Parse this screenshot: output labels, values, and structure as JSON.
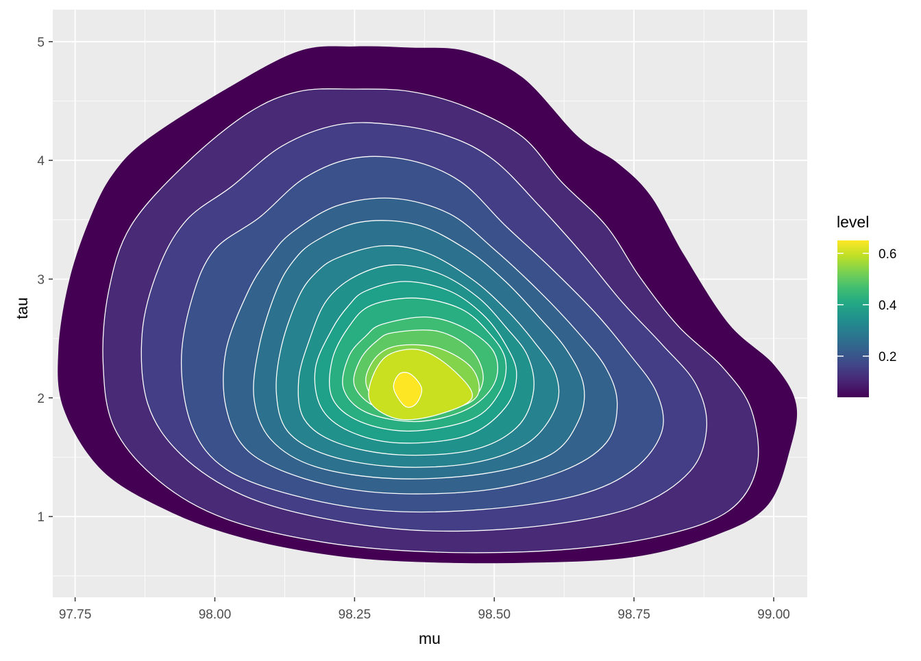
{
  "chart_data": {
    "type": "filled-density-contour",
    "title": "",
    "xlabel": "mu",
    "ylabel": "tau",
    "xlim": [
      97.71,
      99.06
    ],
    "ylim": [
      0.32,
      5.27
    ],
    "x_ticks": [
      97.75,
      98.0,
      98.25,
      98.5,
      98.75,
      99.0
    ],
    "x_tick_labels": [
      "97.75",
      "98.00",
      "98.25",
      "98.50",
      "98.75",
      "99.00"
    ],
    "y_ticks": [
      1,
      2,
      3,
      4,
      5
    ],
    "y_tick_labels": [
      "1",
      "2",
      "3",
      "4",
      "5"
    ],
    "grid": true,
    "panel_background": "#ebebeb",
    "grid_color": "#ffffff",
    "contour_line_color": "#ffffff",
    "peak": {
      "x": 98.335,
      "y": 2.09
    },
    "levels": [
      {
        "level": 0.04,
        "color": "#440154",
        "points": [
          [
            97.88,
            4.18
          ],
          [
            98.02,
            4.6
          ],
          [
            98.15,
            4.92
          ],
          [
            98.25,
            4.96
          ],
          [
            98.35,
            4.95
          ],
          [
            98.45,
            4.92
          ],
          [
            98.55,
            4.7
          ],
          [
            98.65,
            4.2
          ],
          [
            98.72,
            3.98
          ],
          [
            98.78,
            3.7
          ],
          [
            98.84,
            3.2
          ],
          [
            98.92,
            2.62
          ],
          [
            99.0,
            2.28
          ],
          [
            99.04,
            1.95
          ],
          [
            99.03,
            1.58
          ],
          [
            98.99,
            1.1
          ],
          [
            98.9,
            0.85
          ],
          [
            98.75,
            0.66
          ],
          [
            98.55,
            0.61
          ],
          [
            98.35,
            0.62
          ],
          [
            98.2,
            0.68
          ],
          [
            98.05,
            0.82
          ],
          [
            97.92,
            1.04
          ],
          [
            97.8,
            1.38
          ],
          [
            97.73,
            1.9
          ],
          [
            97.72,
            2.4
          ],
          [
            97.74,
            3.0
          ],
          [
            97.78,
            3.55
          ],
          [
            97.82,
            3.9
          ]
        ]
      },
      {
        "level": 0.08,
        "color": "#482a77",
        "points": [
          [
            97.95,
            3.98
          ],
          [
            98.06,
            4.4
          ],
          [
            98.15,
            4.58
          ],
          [
            98.25,
            4.6
          ],
          [
            98.35,
            4.58
          ],
          [
            98.45,
            4.45
          ],
          [
            98.55,
            4.2
          ],
          [
            98.62,
            3.82
          ],
          [
            98.7,
            3.45
          ],
          [
            98.76,
            3.02
          ],
          [
            98.83,
            2.6
          ],
          [
            98.91,
            2.25
          ],
          [
            98.96,
            1.9
          ],
          [
            98.97,
            1.42
          ],
          [
            98.92,
            1.05
          ],
          [
            98.8,
            0.84
          ],
          [
            98.62,
            0.72
          ],
          [
            98.4,
            0.7
          ],
          [
            98.2,
            0.78
          ],
          [
            98.02,
            0.98
          ],
          [
            97.9,
            1.3
          ],
          [
            97.82,
            1.75
          ],
          [
            97.8,
            2.3
          ],
          [
            97.81,
            2.9
          ],
          [
            97.85,
            3.45
          ]
        ]
      },
      {
        "level": 0.12,
        "color": "#433e85",
        "points": [
          [
            98.03,
            3.78
          ],
          [
            98.12,
            4.12
          ],
          [
            98.22,
            4.3
          ],
          [
            98.32,
            4.3
          ],
          [
            98.42,
            4.2
          ],
          [
            98.5,
            4.0
          ],
          [
            98.58,
            3.62
          ],
          [
            98.66,
            3.2
          ],
          [
            98.73,
            2.8
          ],
          [
            98.8,
            2.45
          ],
          [
            98.86,
            2.12
          ],
          [
            98.88,
            1.75
          ],
          [
            98.85,
            1.38
          ],
          [
            98.75,
            1.08
          ],
          [
            98.58,
            0.92
          ],
          [
            98.38,
            0.88
          ],
          [
            98.2,
            0.98
          ],
          [
            98.05,
            1.18
          ],
          [
            97.94,
            1.52
          ],
          [
            97.88,
            1.95
          ],
          [
            97.87,
            2.55
          ],
          [
            97.9,
            3.1
          ],
          [
            97.95,
            3.5
          ]
        ]
      },
      {
        "level": 0.16,
        "color": "#3b518b",
        "points": [
          [
            98.08,
            3.52
          ],
          [
            98.16,
            3.85
          ],
          [
            98.25,
            4.02
          ],
          [
            98.35,
            4.0
          ],
          [
            98.44,
            3.82
          ],
          [
            98.52,
            3.45
          ],
          [
            98.6,
            3.1
          ],
          [
            98.68,
            2.72
          ],
          [
            98.74,
            2.38
          ],
          [
            98.79,
            2.05
          ],
          [
            98.8,
            1.72
          ],
          [
            98.75,
            1.4
          ],
          [
            98.65,
            1.18
          ],
          [
            98.48,
            1.06
          ],
          [
            98.3,
            1.05
          ],
          [
            98.14,
            1.18
          ],
          [
            98.02,
            1.4
          ],
          [
            97.96,
            1.75
          ],
          [
            97.94,
            2.3
          ],
          [
            97.96,
            2.85
          ],
          [
            98.0,
            3.25
          ]
        ]
      },
      {
        "level": 0.2,
        "color": "#33638d",
        "points": [
          [
            98.14,
            3.4
          ],
          [
            98.22,
            3.62
          ],
          [
            98.32,
            3.68
          ],
          [
            98.42,
            3.55
          ],
          [
            98.5,
            3.25
          ],
          [
            98.58,
            2.9
          ],
          [
            98.65,
            2.55
          ],
          [
            98.7,
            2.25
          ],
          [
            98.72,
            1.95
          ],
          [
            98.7,
            1.62
          ],
          [
            98.62,
            1.38
          ],
          [
            98.48,
            1.22
          ],
          [
            98.3,
            1.2
          ],
          [
            98.16,
            1.32
          ],
          [
            98.06,
            1.55
          ],
          [
            98.02,
            1.92
          ],
          [
            98.02,
            2.4
          ],
          [
            98.06,
            2.9
          ],
          [
            98.1,
            3.2
          ]
        ]
      },
      {
        "level": 0.24,
        "color": "#2c728e",
        "points": [
          [
            98.18,
            3.32
          ],
          [
            98.26,
            3.48
          ],
          [
            98.36,
            3.46
          ],
          [
            98.45,
            3.25
          ],
          [
            98.52,
            2.98
          ],
          [
            98.58,
            2.68
          ],
          [
            98.63,
            2.4
          ],
          [
            98.66,
            2.1
          ],
          [
            98.65,
            1.8
          ],
          [
            98.6,
            1.52
          ],
          [
            98.48,
            1.36
          ],
          [
            98.32,
            1.32
          ],
          [
            98.18,
            1.42
          ],
          [
            98.1,
            1.65
          ],
          [
            98.07,
            2.0
          ],
          [
            98.08,
            2.45
          ],
          [
            98.11,
            2.9
          ],
          [
            98.14,
            3.15
          ]
        ]
      },
      {
        "level": 0.28,
        "color": "#26828e",
        "points": [
          [
            98.22,
            3.18
          ],
          [
            98.3,
            3.28
          ],
          [
            98.38,
            3.22
          ],
          [
            98.46,
            3.0
          ],
          [
            98.52,
            2.75
          ],
          [
            98.57,
            2.48
          ],
          [
            98.61,
            2.2
          ],
          [
            98.61,
            1.92
          ],
          [
            98.56,
            1.62
          ],
          [
            98.46,
            1.45
          ],
          [
            98.32,
            1.42
          ],
          [
            98.2,
            1.52
          ],
          [
            98.13,
            1.72
          ],
          [
            98.11,
            2.05
          ],
          [
            98.12,
            2.45
          ],
          [
            98.15,
            2.85
          ],
          [
            98.18,
            3.05
          ]
        ]
      },
      {
        "level": 0.32,
        "color": "#21918c",
        "points": [
          [
            98.25,
            3.02
          ],
          [
            98.32,
            3.12
          ],
          [
            98.4,
            3.05
          ],
          [
            98.47,
            2.85
          ],
          [
            98.52,
            2.6
          ],
          [
            98.56,
            2.35
          ],
          [
            98.57,
            2.05
          ],
          [
            98.54,
            1.75
          ],
          [
            98.46,
            1.56
          ],
          [
            98.33,
            1.52
          ],
          [
            98.22,
            1.62
          ],
          [
            98.16,
            1.82
          ],
          [
            98.15,
            2.15
          ],
          [
            98.17,
            2.5
          ],
          [
            98.2,
            2.82
          ]
        ]
      },
      {
        "level": 0.36,
        "color": "#1fa088",
        "points": [
          [
            98.27,
            2.9
          ],
          [
            98.34,
            2.98
          ],
          [
            98.42,
            2.9
          ],
          [
            98.48,
            2.7
          ],
          [
            98.52,
            2.45
          ],
          [
            98.54,
            2.2
          ],
          [
            98.52,
            1.92
          ],
          [
            98.45,
            1.68
          ],
          [
            98.33,
            1.62
          ],
          [
            98.24,
            1.72
          ],
          [
            98.19,
            1.92
          ],
          [
            98.18,
            2.25
          ],
          [
            98.21,
            2.58
          ],
          [
            98.24,
            2.78
          ]
        ]
      },
      {
        "level": 0.4,
        "color": "#28ae80",
        "points": [
          [
            98.28,
            2.78
          ],
          [
            98.36,
            2.84
          ],
          [
            98.44,
            2.75
          ],
          [
            98.49,
            2.55
          ],
          [
            98.52,
            2.32
          ],
          [
            98.51,
            2.05
          ],
          [
            98.46,
            1.82
          ],
          [
            98.35,
            1.72
          ],
          [
            98.26,
            1.8
          ],
          [
            98.21,
            2.0
          ],
          [
            98.21,
            2.32
          ],
          [
            98.24,
            2.6
          ]
        ]
      },
      {
        "level": 0.44,
        "color": "#3fbc73",
        "points": [
          [
            98.3,
            2.62
          ],
          [
            98.38,
            2.68
          ],
          [
            98.45,
            2.58
          ],
          [
            98.5,
            2.38
          ],
          [
            98.5,
            2.12
          ],
          [
            98.45,
            1.9
          ],
          [
            98.36,
            1.8
          ],
          [
            98.27,
            1.88
          ],
          [
            98.23,
            2.08
          ],
          [
            98.24,
            2.35
          ],
          [
            98.27,
            2.52
          ]
        ]
      },
      {
        "level": 0.48,
        "color": "#5ec962",
        "points": [
          [
            98.32,
            2.55
          ],
          [
            98.4,
            2.56
          ],
          [
            98.46,
            2.4
          ],
          [
            98.48,
            2.15
          ],
          [
            98.45,
            1.95
          ],
          [
            98.37,
            1.85
          ],
          [
            98.29,
            1.92
          ],
          [
            98.25,
            2.1
          ],
          [
            98.26,
            2.32
          ],
          [
            98.29,
            2.48
          ]
        ]
      },
      {
        "level": 0.52,
        "color": "#84d44b",
        "points": [
          [
            98.33,
            2.44
          ],
          [
            98.4,
            2.42
          ],
          [
            98.46,
            2.25
          ],
          [
            98.47,
            2.02
          ],
          [
            98.42,
            1.9
          ],
          [
            98.35,
            1.88
          ],
          [
            98.29,
            1.98
          ],
          [
            98.27,
            2.15
          ],
          [
            98.29,
            2.35
          ]
        ]
      },
      {
        "level": 0.56,
        "color": "#c8e020",
        "points": [
          [
            98.31,
            2.36
          ],
          [
            98.37,
            2.4
          ],
          [
            98.43,
            2.22
          ],
          [
            98.46,
            2.0
          ],
          [
            98.4,
            1.86
          ],
          [
            98.33,
            1.82
          ],
          [
            98.28,
            1.95
          ],
          [
            98.28,
            2.15
          ]
        ]
      },
      {
        "level": 0.6,
        "color": "#fde725",
        "points": [
          [
            98.33,
            2.2
          ],
          [
            98.35,
            2.2
          ],
          [
            98.37,
            2.08
          ],
          [
            98.36,
            1.95
          ],
          [
            98.34,
            1.93
          ],
          [
            98.32,
            2.08
          ]
        ]
      }
    ],
    "legend": {
      "title": "level",
      "placement": "right",
      "min": 0.04,
      "max": 0.65,
      "breaks": [
        0.2,
        0.4,
        0.6
      ],
      "break_labels": [
        "0.2",
        "0.4",
        "0.6"
      ],
      "palette": [
        "#440154",
        "#482475",
        "#414487",
        "#355f8d",
        "#2a788e",
        "#21908d",
        "#22a884",
        "#42be71",
        "#7ad151",
        "#bddf26",
        "#fde725"
      ]
    }
  }
}
